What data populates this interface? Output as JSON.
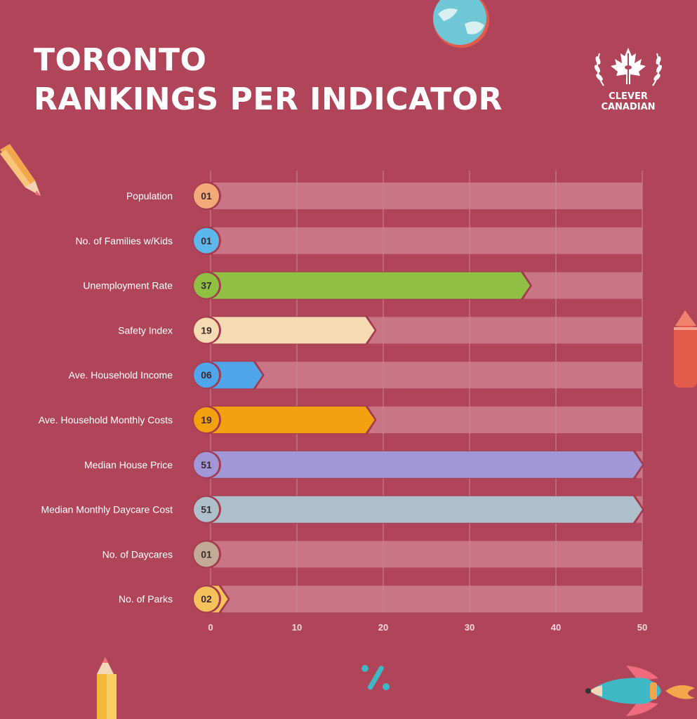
{
  "header": {
    "title_line1": "TORONTO",
    "title_line2": "RANKINGS PER INDICATOR"
  },
  "logo": {
    "line1": "CLEVER",
    "line2": "CANADIAN",
    "icon": "maple-leaf-cn-tower-icon"
  },
  "decorations": [
    "globe-icon",
    "pencil-icon",
    "crayon-icon",
    "percent-icon",
    "rocket-icon"
  ],
  "colors": {
    "background": "#b0455a",
    "track": "#c97585",
    "grid": "#c98796"
  },
  "chart_data": {
    "type": "bar",
    "orientation": "horizontal",
    "title": "",
    "xlabel": "",
    "ylabel": "",
    "xlim": [
      0,
      50
    ],
    "xticks": [
      0,
      10,
      20,
      30,
      40,
      50
    ],
    "grid": true,
    "legend": "none",
    "categories": [
      "Population",
      "No. of Families w/Kids",
      "Unemployment Rate",
      "Safety Index",
      "Ave. Household Income",
      "Ave. Household Monthly Costs",
      "Median House Price",
      "Median Monthly Daycare Cost",
      "No. of Daycares",
      "No. of Parks"
    ],
    "values": [
      1,
      1,
      37,
      19,
      6,
      19,
      51,
      51,
      1,
      2
    ],
    "value_labels": [
      "01",
      "01",
      "37",
      "19",
      "06",
      "19",
      "51",
      "51",
      "01",
      "02"
    ],
    "bar_colors": [
      "#f3a978",
      "#5bb7ec",
      "#8fc043",
      "#f4dbb1",
      "#4fa6ea",
      "#f1a20e",
      "#a197d6",
      "#aebfcc",
      "#c3aa97",
      "#f4c15a"
    ]
  }
}
